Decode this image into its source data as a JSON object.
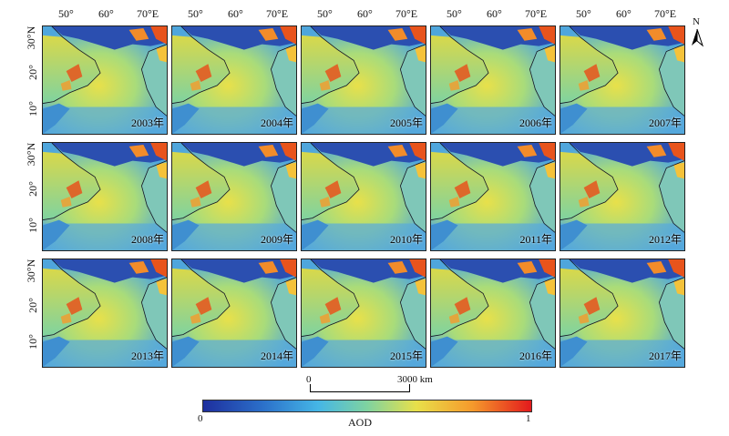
{
  "lon_labels": [
    "50°",
    "60°",
    "70°E"
  ],
  "lat_labels": [
    "30°N",
    "20°",
    "10°"
  ],
  "panels": [
    {
      "year": "2003年"
    },
    {
      "year": "2004年"
    },
    {
      "year": "2005年"
    },
    {
      "year": "2006年"
    },
    {
      "year": "2007年"
    },
    {
      "year": "2008年"
    },
    {
      "year": "2009年"
    },
    {
      "year": "2010年"
    },
    {
      "year": "2011年"
    },
    {
      "year": "2012年"
    },
    {
      "year": "2013年"
    },
    {
      "year": "2014年"
    },
    {
      "year": "2015年"
    },
    {
      "year": "2016年"
    },
    {
      "year": "2017年"
    }
  ],
  "scale_bar": {
    "start": "0",
    "end": "3000 km"
  },
  "colorbar": {
    "min": "0",
    "max": "1",
    "title": "AOD",
    "colors": [
      "#1e2f9e",
      "#2b6fc9",
      "#45b6e6",
      "#7fd3a0",
      "#e8e04a",
      "#f59a2c",
      "#e31a1c"
    ]
  },
  "north_arrow": {
    "label": "N"
  }
}
